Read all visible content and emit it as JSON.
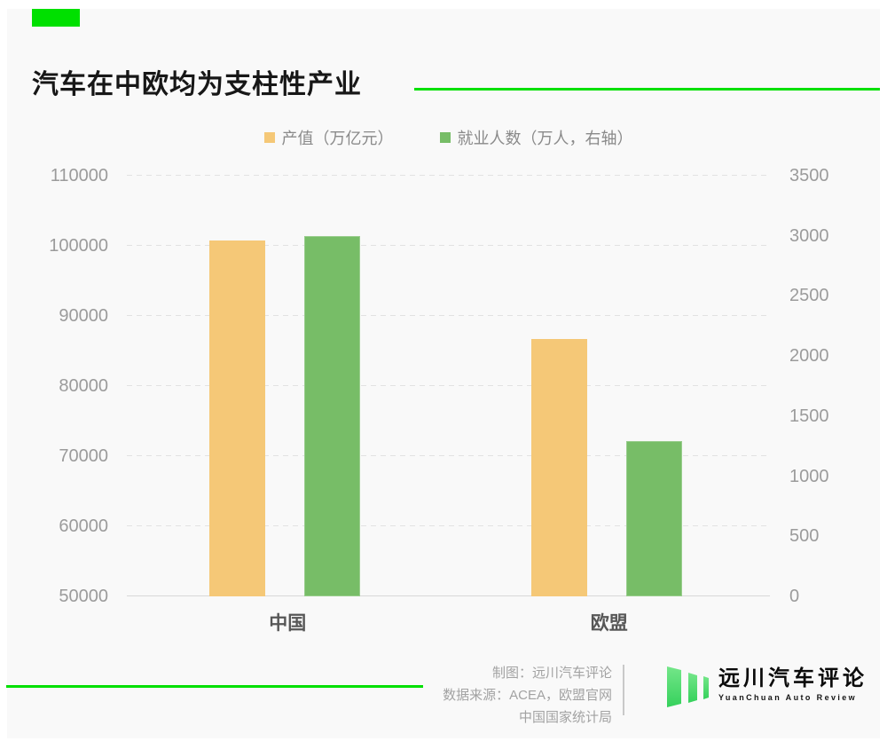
{
  "chart_data": {
    "type": "bar",
    "title": "汽车在中欧均为支柱性产业",
    "categories": [
      "中国",
      "欧盟"
    ],
    "series": [
      {
        "name": "产值（万亿元）",
        "axis": "left",
        "color": "#f5c877",
        "values": [
          100800,
          86700
        ]
      },
      {
        "name": "就业人数（万人，右轴）",
        "axis": "right",
        "color": "#77bd67",
        "values": [
          3000,
          1290
        ]
      }
    ],
    "left_axis": {
      "min": 50000,
      "max": 110000,
      "step": 10000,
      "ticks": [
        "50000",
        "60000",
        "70000",
        "80000",
        "90000",
        "100000",
        "110000"
      ]
    },
    "right_axis": {
      "min": 0,
      "max": 3500,
      "step": 500,
      "ticks": [
        "0",
        "500",
        "1000",
        "1500",
        "2000",
        "2500",
        "3000",
        "3500"
      ]
    },
    "grid": "horizontal-dashed",
    "legend_position": "top-center"
  },
  "footer": {
    "credits": [
      "制图：远川汽车评论",
      "数据来源：ACEA，欧盟官网",
      "中国国家统计局"
    ],
    "logo_cn": "远川汽车评论",
    "logo_en": "YuanChuan Auto Review"
  },
  "colors": {
    "accent_green": "#00e000",
    "card_bg": "#f9f9f9",
    "bar_orange": "#f5c877",
    "bar_green": "#77bd67"
  }
}
